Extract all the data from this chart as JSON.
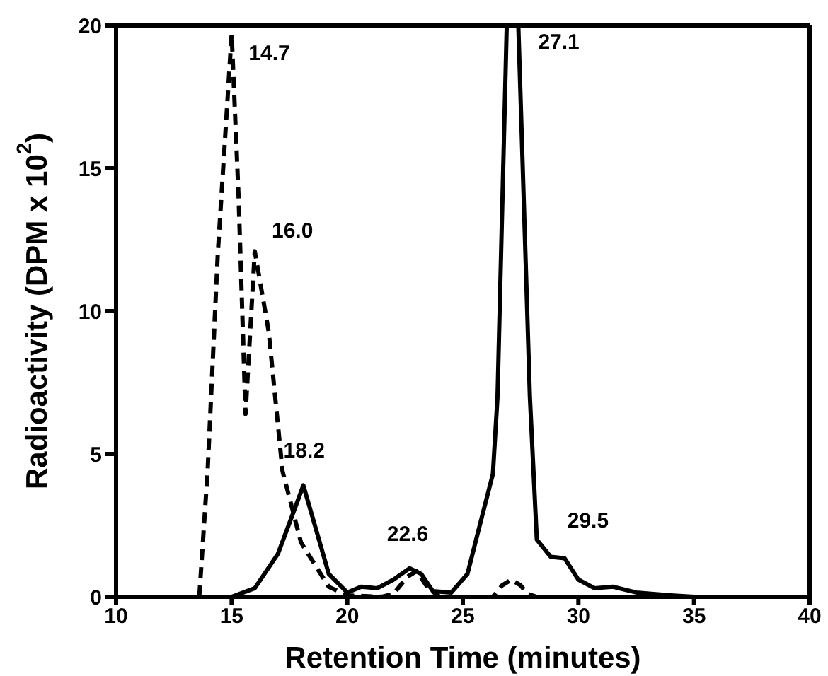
{
  "chart_data": {
    "type": "line",
    "xlabel": "Retention Time (minutes)",
    "ylabel": "Radioactivity (DPM x 10$^{2}$)",
    "xlim": [
      10,
      40
    ],
    "xticks": [
      10,
      15,
      20,
      25,
      30,
      35,
      40
    ],
    "ylim": [
      0,
      20
    ],
    "yticks": [
      0,
      5,
      10,
      15,
      20
    ],
    "legend": false,
    "marker": "none",
    "series": [
      {
        "color": "#000000",
        "line_style": "dashed",
        "x": [
          13.6,
          13.96,
          14.4,
          15.0,
          15.3,
          15.6,
          16.0,
          16.6,
          17.2,
          18.0,
          19.2,
          20.0,
          21.5,
          22.0,
          22.6,
          23.0,
          23.5,
          24.0,
          26.3,
          26.7,
          27.1,
          27.5,
          27.8,
          28.2
        ],
        "values": [
          0,
          4.4,
          12,
          19.7,
          14,
          6.4,
          12.1,
          9.3,
          4.4,
          1.9,
          0.35,
          0.05,
          0,
          0.1,
          0.7,
          0.9,
          0.3,
          0,
          0,
          0.4,
          0.6,
          0.4,
          0.1,
          0
        ]
      },
      {
        "color": "#000000",
        "line_style": "solid",
        "x": [
          15,
          16,
          17,
          17.6,
          18.1,
          18.6,
          19.2,
          20,
          20.6,
          21.3,
          22,
          22.7,
          23.2,
          23.7,
          24.5,
          25.2,
          25.7,
          26.3,
          26.5,
          26.9,
          27.4,
          27.9,
          28.2,
          28.8,
          29.4,
          30,
          30.7,
          31.5,
          32.5,
          34,
          35
        ],
        "values": [
          0,
          0.3,
          1.5,
          2.8,
          3.9,
          2.5,
          0.8,
          0.15,
          0.35,
          0.3,
          0.6,
          1.0,
          0.8,
          0.2,
          0.15,
          0.8,
          2.4,
          4.3,
          7,
          20,
          20,
          7,
          2.0,
          1.4,
          1.35,
          0.6,
          0.3,
          0.35,
          0.15,
          0.05,
          0
        ]
      }
    ],
    "annotations": [
      {
        "text": "14.7",
        "x": 15.0,
        "y": 19.7
      },
      {
        "text": "16.0",
        "x": 16.0,
        "y": 12.1
      },
      {
        "text": "18.2",
        "x": 18.1,
        "y": 3.9
      },
      {
        "text": "22.6",
        "x": 22.7,
        "y": 1.0
      },
      {
        "text": "27.1",
        "x": 27.4,
        "y": 20
      },
      {
        "text": "29.5",
        "x": 29.4,
        "y": 1.35
      }
    ]
  }
}
